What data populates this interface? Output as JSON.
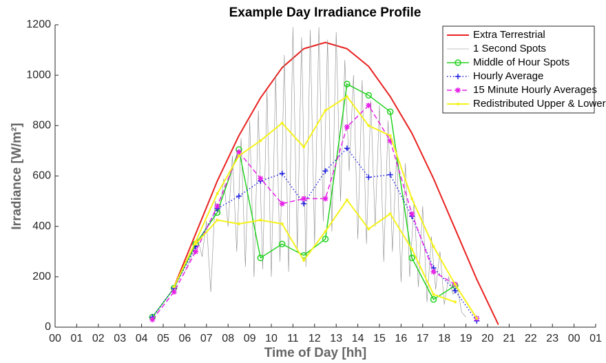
{
  "chart_data": {
    "type": "line",
    "title": "Example Day Irradiance Profile",
    "x_label": "Time of Day [hh]",
    "y_label": "Irradiance [W/m²]",
    "xlim": [
      0,
      25
    ],
    "ylim": [
      0,
      1200
    ],
    "xticks": [
      {
        "value": 0,
        "label": "00"
      },
      {
        "value": 1,
        "label": "01"
      },
      {
        "value": 2,
        "label": "02"
      },
      {
        "value": 3,
        "label": "03"
      },
      {
        "value": 4,
        "label": "04"
      },
      {
        "value": 5,
        "label": "05"
      },
      {
        "value": 6,
        "label": "06"
      },
      {
        "value": 7,
        "label": "07"
      },
      {
        "value": 8,
        "label": "08"
      },
      {
        "value": 9,
        "label": "09"
      },
      {
        "value": 10,
        "label": "10"
      },
      {
        "value": 11,
        "label": "11"
      },
      {
        "value": 12,
        "label": "12"
      },
      {
        "value": 13,
        "label": "13"
      },
      {
        "value": 14,
        "label": "14"
      },
      {
        "value": 15,
        "label": "15"
      },
      {
        "value": 16,
        "label": "16"
      },
      {
        "value": 17,
        "label": "17"
      },
      {
        "value": 18,
        "label": "18"
      },
      {
        "value": 19,
        "label": "19"
      },
      {
        "value": 20,
        "label": "20"
      },
      {
        "value": 21,
        "label": "21"
      },
      {
        "value": 22,
        "label": "22"
      },
      {
        "value": 23,
        "label": "23"
      },
      {
        "value": 24,
        "label": "00"
      },
      {
        "value": 25,
        "label": "01"
      }
    ],
    "yticks": [
      0,
      200,
      400,
      600,
      800,
      1000,
      1200
    ],
    "legend": "upper right",
    "series": [
      {
        "name": "Extra Terrestrial",
        "color": "#e8211f",
        "line_style": "solid",
        "line_width": 2,
        "marker": "none",
        "x": [
          5.5,
          6.5,
          7.5,
          8.5,
          9.5,
          10.5,
          11.5,
          12.5,
          13.5,
          14.5,
          15.5,
          16.5,
          17.5,
          18.5,
          19.5,
          20.5
        ],
        "values": [
          160,
          370,
          580,
          760,
          910,
          1030,
          1105,
          1130,
          1105,
          1035,
          915,
          770,
          590,
          390,
          190,
          10
        ]
      },
      {
        "name": "1 Second Spots",
        "color": "#8a8a8a",
        "line_style": "solid",
        "line_width": 0.6,
        "marker": "none",
        "x": [
          6.0,
          6.2,
          6.4,
          6.6,
          6.8,
          7.0,
          7.2,
          7.4,
          7.6,
          7.8,
          8.0,
          8.2,
          8.4,
          8.6,
          8.8,
          9.0,
          9.2,
          9.4,
          9.6,
          9.8,
          10.0,
          10.2,
          10.4,
          10.6,
          10.8,
          11.0,
          11.2,
          11.4,
          11.6,
          11.8,
          12.0,
          12.2,
          12.4,
          12.6,
          12.8,
          13.0,
          13.2,
          13.4,
          13.6,
          13.8,
          14.0,
          14.2,
          14.4,
          14.6,
          14.8,
          15.0,
          15.2,
          15.4,
          15.6,
          15.8,
          16.0,
          16.2,
          16.4,
          16.6,
          16.8,
          17.0,
          17.2,
          17.4,
          17.6,
          17.8,
          18.0,
          18.2,
          18.4,
          18.6,
          18.8,
          19.0
        ],
        "values": [
          220,
          260,
          300,
          350,
          280,
          420,
          140,
          500,
          450,
          590,
          400,
          680,
          300,
          750,
          240,
          820,
          200,
          860,
          230,
          940,
          200,
          1000,
          260,
          1080,
          220,
          1190,
          300,
          1150,
          240,
          1180,
          330,
          1190,
          420,
          1140,
          380,
          1170,
          500,
          1060,
          620,
          1000,
          350,
          980,
          330,
          900,
          400,
          880,
          260,
          820,
          300,
          700,
          180,
          650,
          200,
          500,
          160,
          480,
          100,
          360,
          150,
          300,
          90,
          200,
          130,
          160,
          60,
          40
        ]
      },
      {
        "name": "Middle of Hour Spots",
        "color": "#22d11f",
        "line_style": "solid",
        "line_width": 1.5,
        "marker": "o",
        "x": [
          4.5,
          5.5,
          6.5,
          7.5,
          8.5,
          9.5,
          10.5,
          11.5,
          12.5,
          13.5,
          14.5,
          15.5,
          16.5,
          17.5,
          18.5
        ],
        "values": [
          40,
          155,
          330,
          455,
          705,
          275,
          330,
          285,
          350,
          965,
          920,
          855,
          275,
          110,
          165
        ]
      },
      {
        "name": "Hourly Average",
        "color": "#1d1de0",
        "line_style": "dotted",
        "line_width": 1.5,
        "marker": "+",
        "x": [
          4.5,
          5.5,
          6.5,
          7.5,
          8.5,
          9.5,
          10.5,
          11.5,
          12.5,
          13.5,
          14.5,
          15.5,
          16.5,
          17.5,
          18.5,
          19.5
        ],
        "values": [
          40,
          155,
          320,
          470,
          520,
          580,
          610,
          490,
          620,
          710,
          595,
          605,
          440,
          235,
          145,
          25
        ]
      },
      {
        "name": "15 Minute Hourly Averages",
        "color": "#e61ee6",
        "line_style": "dashed",
        "line_width": 1.5,
        "marker": "*",
        "x": [
          4.5,
          5.5,
          6.5,
          7.5,
          8.5,
          9.5,
          10.5,
          11.5,
          12.5,
          13.5,
          14.5,
          15.5,
          16.5,
          17.5,
          18.5,
          19.5
        ],
        "values": [
          30,
          140,
          300,
          480,
          695,
          590,
          490,
          510,
          510,
          795,
          880,
          740,
          450,
          220,
          170,
          35
        ]
      },
      {
        "name": "Redistributed Upper & Lower",
        "color": "#f5f21a",
        "line_style": "solid",
        "line_width": 2,
        "marker": ".",
        "x": [
          5.5,
          6.5,
          7.5,
          8.5,
          9.5,
          10.5,
          11.5,
          12.5,
          13.5,
          14.5,
          15.5,
          16.5,
          17.5,
          18.5,
          19.5,
          19.5,
          6.5,
          7.5,
          8.5,
          9.5,
          10.5,
          11.5,
          12.5,
          13.5,
          14.5,
          15.5,
          16.5,
          17.5,
          18.5
        ],
        "values": [
          160,
          340,
          530,
          680,
          740,
          810,
          715,
          860,
          915,
          800,
          760,
          510,
          320,
          170,
          35,
          null,
          330,
          425,
          410,
          425,
          410,
          265,
          380,
          505,
          390,
          450,
          310,
          130,
          100
        ]
      }
    ]
  }
}
